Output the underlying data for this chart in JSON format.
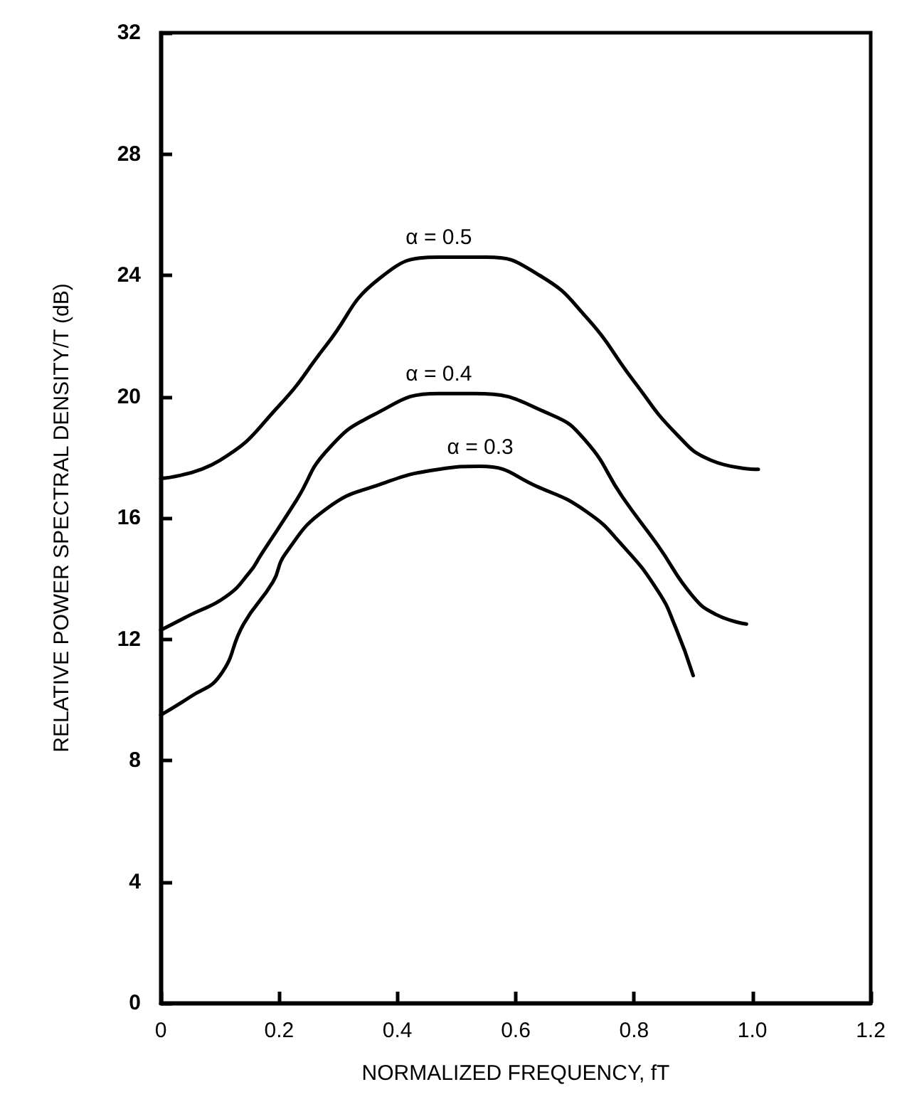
{
  "chart_data": {
    "type": "line",
    "xlabel": "NORMALIZED FREQUENCY, fT",
    "ylabel": "RELATIVE POWER SPECTRAL DENSITY/T (dB)",
    "xlim": [
      0,
      1.2
    ],
    "ylim": [
      0,
      32
    ],
    "xticks": [
      0,
      0.2,
      0.4,
      0.6,
      0.8,
      {
        "value": 1,
        "label": "1.0"
      },
      1.2
    ],
    "yticks": [
      0,
      4,
      8,
      12,
      16,
      20,
      24,
      28,
      32
    ],
    "grid": false,
    "legend": false,
    "marker": "none",
    "line_style": "solid",
    "series": [
      {
        "name": "α = 0.5",
        "color": "#000000",
        "x": [
          0,
          0.1,
          0.2,
          0.28,
          0.37,
          0.47,
          0.55,
          0.64,
          0.72,
          0.8,
          0.87,
          0.93,
          1.01
        ],
        "values": [
          17.3,
          17.9,
          19.7,
          21.7,
          23.9,
          24.6,
          24.6,
          24.0,
          22.6,
          20.5,
          18.8,
          17.9,
          17.6
        ]
      },
      {
        "name": "α = 0.4",
        "color": "#000000",
        "x": [
          0,
          0.05,
          0.11,
          0.15,
          0.17,
          0.23,
          0.28,
          0.36,
          0.47,
          0.53,
          0.66,
          0.72,
          0.78,
          0.84,
          0.9,
          0.94,
          0.99
        ],
        "values": [
          12.3,
          12.8,
          13.4,
          14.2,
          14.8,
          16.6,
          18.2,
          19.4,
          20.1,
          20.1,
          19.4,
          18.5,
          16.7,
          15.1,
          13.4,
          12.8,
          12.5
        ]
      },
      {
        "name": "α = 0.3",
        "color": "#000000",
        "x": [
          0,
          0.05,
          0.1,
          0.14,
          0.19,
          0.21,
          0.28,
          0.37,
          0.47,
          0.54,
          0.64,
          0.72,
          0.78,
          0.84,
          0.87,
          0.9
        ],
        "values": [
          9.5,
          10.1,
          10.8,
          12.5,
          13.9,
          14.8,
          16.3,
          17.1,
          17.6,
          17.7,
          17.0,
          16.2,
          15.1,
          13.6,
          12.4,
          10.8
        ]
      }
    ]
  }
}
